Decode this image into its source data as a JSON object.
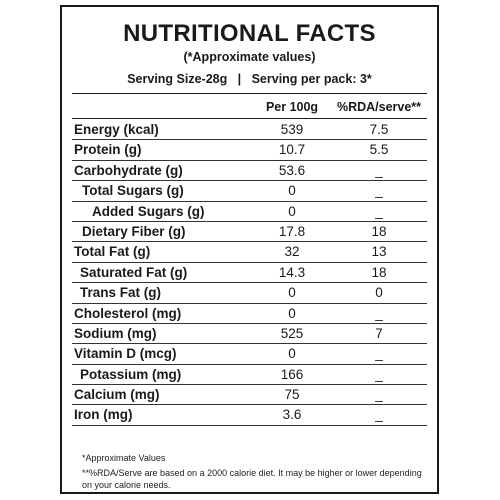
{
  "label": {
    "title": "NUTRITIONAL FACTS",
    "subtitle": "(*Approximate values)",
    "serving_line": "Serving Size-28g   |   Serving per pack: 3*",
    "col_per100g": "Per 100g",
    "col_rda": "%RDA/serve**"
  },
  "nutrients": [
    {
      "name": "Energy (kcal)",
      "per100g": "539",
      "rda": "7.5",
      "indent": 0
    },
    {
      "name": "Protein (g)",
      "per100g": "10.7",
      "rda": "5.5",
      "indent": 0
    },
    {
      "name": "Carbohydrate (g)",
      "per100g": "53.6",
      "rda": "_",
      "indent": 0
    },
    {
      "name": "Total Sugars (g)",
      "per100g": "0",
      "rda": "_",
      "indent": 1
    },
    {
      "name": "Added Sugars (g)",
      "per100g": "0",
      "rda": "_",
      "indent": 2
    },
    {
      "name": "Dietary Fiber (g)",
      "per100g": "17.8",
      "rda": "18",
      "indent": 1
    },
    {
      "name": "Total Fat (g)",
      "per100g": "32",
      "rda": "13",
      "indent": 0
    },
    {
      "name": "Saturated Fat (g)",
      "per100g": "14.3",
      "rda": "18",
      "indent": 3
    },
    {
      "name": "Trans Fat (g)",
      "per100g": "0",
      "rda": "0",
      "indent": 3
    },
    {
      "name": "Cholesterol (mg)",
      "per100g": "0",
      "rda": "_",
      "indent": 0
    },
    {
      "name": "Sodium (mg)",
      "per100g": "525",
      "rda": "7",
      "indent": 0
    },
    {
      "name": "Vitamin D (mcg)",
      "per100g": "0",
      "rda": "_",
      "indent": 0
    },
    {
      "name": "Potassium (mg)",
      "per100g": "166",
      "rda": "_",
      "indent": 3
    },
    {
      "name": "Calcium (mg)",
      "per100g": "75",
      "rda": "_",
      "indent": 0
    },
    {
      "name": "Iron (mg)",
      "per100g": "3.6",
      "rda": "_",
      "indent": 0
    }
  ],
  "notes": {
    "approx": "*Approximate Values",
    "rda": "**%RDA/Serve are based on a 2000 calorie diet. It may be higher or lower depending on your calorie needs."
  }
}
